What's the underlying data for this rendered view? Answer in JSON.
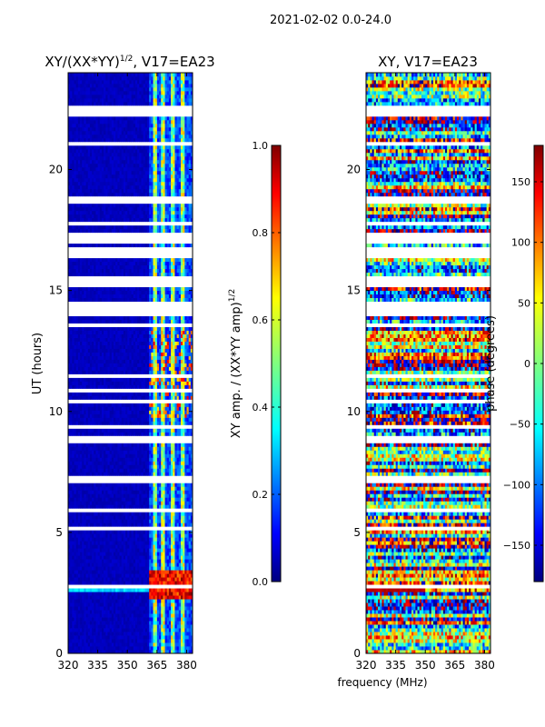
{
  "figure_title": "2021-02-02 0.0-24.0",
  "xlabel_shared": "frequency (MHz)",
  "chart_data": [
    {
      "type": "heatmap",
      "title_main": "XY/(XX*YY)",
      "title_sup": "1/2",
      "title_tail": ", V17=EA23",
      "xlabel": "",
      "ylabel": "UT (hours)",
      "x_ticks": [
        "320",
        "335",
        "350",
        "365",
        "380"
      ],
      "x_tick_values": [
        320,
        335,
        350,
        365,
        380
      ],
      "xlim": [
        320,
        383
      ],
      "y_ticks": [
        "0",
        "5",
        "10",
        "15",
        "20"
      ],
      "y_tick_values": [
        0,
        5,
        10,
        15,
        20
      ],
      "ylim": [
        0,
        24
      ],
      "colorbar": {
        "label_main": "XY amp. / (XX*YY amp)",
        "label_sup": "1/2",
        "ticks": [
          "0.0",
          "0.2",
          "0.4",
          "0.6",
          "0.8",
          "1.0"
        ],
        "tick_values": [
          0.0,
          0.2,
          0.4,
          0.6,
          0.8,
          1.0
        ],
        "range": [
          0,
          1
        ],
        "colormap": "jet"
      },
      "data_description": "low (~0.05) below 362 MHz; bright channels near 364, 368, 373, 378 MHz; strong band ~2.2-3.5 h"
    },
    {
      "type": "heatmap",
      "title_main": "XY, V17=EA23",
      "xlabel": "",
      "ylabel": "",
      "x_ticks": [
        "320",
        "335",
        "350",
        "365",
        "380"
      ],
      "x_tick_values": [
        320,
        335,
        350,
        365,
        380
      ],
      "xlim": [
        320,
        383
      ],
      "y_ticks": [
        "0",
        "5",
        "10",
        "15",
        "20"
      ],
      "y_tick_values": [
        0,
        5,
        10,
        15,
        20
      ],
      "ylim": [
        0,
        24
      ],
      "colorbar": {
        "label_main": "phase (degrees)",
        "ticks": [
          "150",
          "100",
          "50",
          "0",
          "−50",
          "−100",
          "−150"
        ],
        "tick_values": [
          150,
          100,
          50,
          0,
          -50,
          -100,
          -150
        ],
        "range": [
          -180,
          180
        ],
        "colormap": "jet"
      },
      "data_description": "noisy phase, horizontal streaks; red band near 2.6-2.9 h"
    }
  ]
}
